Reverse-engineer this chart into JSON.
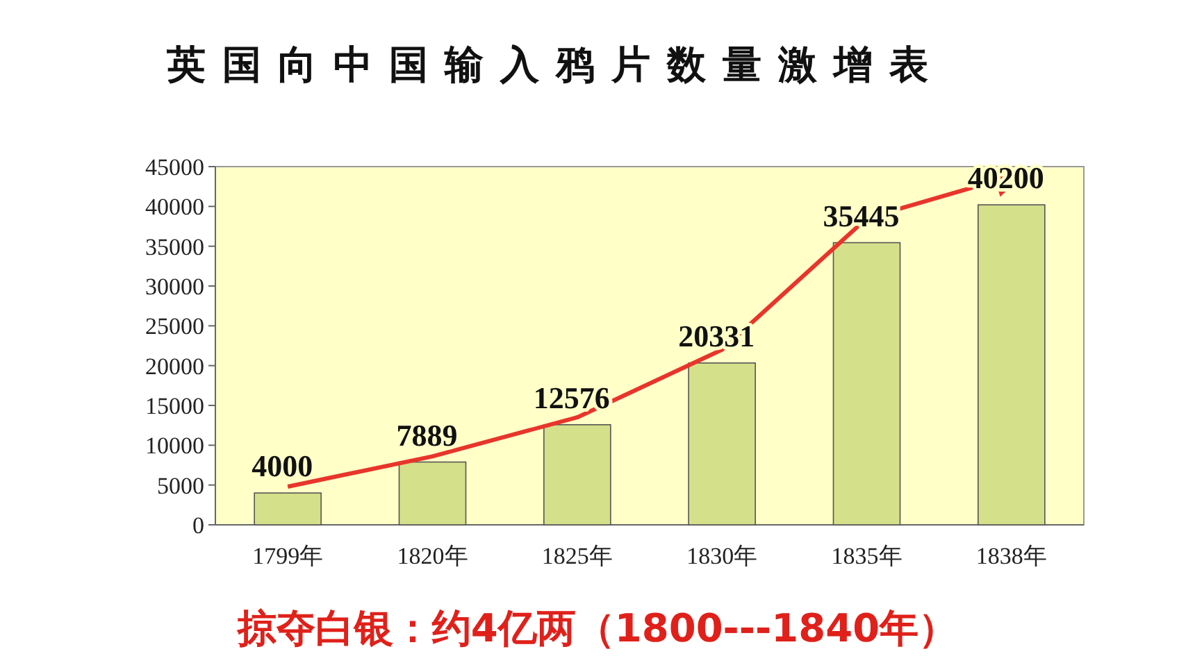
{
  "chart_data": {
    "type": "bar",
    "title": "英国向中国输入鸦片数量激增表",
    "categories": [
      "1799年",
      "1820年",
      "1825年",
      "1830年",
      "1835年",
      "1838年"
    ],
    "series": [
      {
        "color": "#d5e08a",
        "values": [
          4000,
          7889,
          12576,
          20331,
          35445,
          40200
        ],
        "value_labels": [
          "4000",
          "7889",
          "12576",
          "20331",
          "35445",
          "40200"
        ]
      },
      {
        "type": "line",
        "color": "#e8352b",
        "values": [
          4800,
          8600,
          13500,
          22000,
          38500,
          43800
        ]
      }
    ],
    "ylim": [
      0,
      45000
    ],
    "yticks": [
      0,
      5000,
      10000,
      15000,
      20000,
      25000,
      30000,
      35000,
      40000,
      45000
    ],
    "grid": false,
    "annotations": [
      "掠夺白银：约4亿两（1800---1840年）"
    ]
  }
}
